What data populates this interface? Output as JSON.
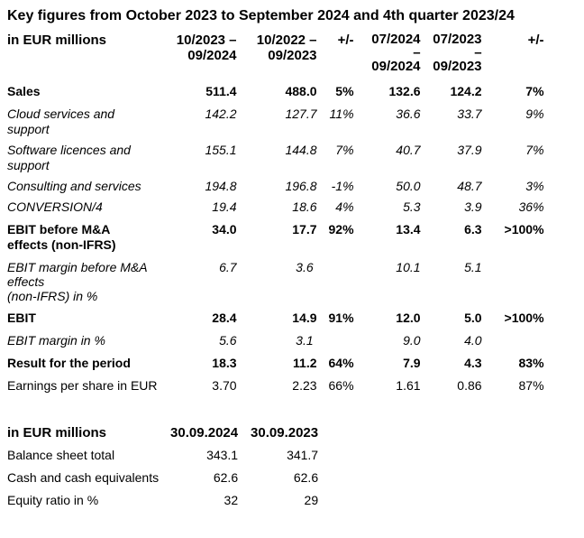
{
  "title": "Key figures from October 2023 to September 2024 and 4th quarter 2023/24",
  "main_table": {
    "label_header": "in EUR millions",
    "col_headers": [
      "10/2023 –\n09/2024",
      "10/2022 –\n09/2023",
      "+/-",
      "07/2024\n–\n09/2024",
      "07/2023\n–\n09/2023",
      "+/-"
    ],
    "rows": [
      {
        "label": "Sales",
        "style": "bold",
        "values": [
          "511.4",
          "488.0",
          "5%",
          "132.6",
          "124.2",
          "7%"
        ]
      },
      {
        "label": "Cloud services and\nsupport",
        "style": "italic",
        "values": [
          "142.2",
          "127.7",
          "11%",
          "36.6",
          "33.7",
          "9%"
        ]
      },
      {
        "label": "Software licences and\nsupport",
        "style": "italic",
        "values": [
          "155.1",
          "144.8",
          "7%",
          "40.7",
          "37.9",
          "7%"
        ]
      },
      {
        "label": "Consulting and services",
        "style": "italic",
        "values": [
          "194.8",
          "196.8",
          "-1%",
          "50.0",
          "48.7",
          "3%"
        ]
      },
      {
        "label": "CONVERSION/4",
        "style": "italic",
        "values": [
          "19.4",
          "18.6",
          "4%",
          "5.3",
          "3.9",
          "36%"
        ]
      },
      {
        "label": "EBIT before M&A\neffects (non-IFRS)",
        "style": "bold",
        "values": [
          "34.0",
          "17.7",
          "92%",
          "13.4",
          "6.3",
          ">100%"
        ]
      },
      {
        "label": "EBIT margin before M&A\neffects\n(non-IFRS) in %",
        "style": "italic",
        "values": [
          "6.7",
          "3.6 ",
          "",
          "10.1",
          "5.1",
          ""
        ]
      },
      {
        "label": "EBIT",
        "style": "bold",
        "values": [
          "28.4",
          "14.9",
          "91%",
          "12.0",
          "5.0",
          ">100%"
        ]
      },
      {
        "label": "EBIT margin in %",
        "style": "italic",
        "values": [
          "5.6",
          "3.1 ",
          "",
          "9.0",
          "4.0",
          ""
        ]
      },
      {
        "label": "Result for the period",
        "style": "bold",
        "values": [
          "18.3",
          "11.2",
          "64%",
          "7.9",
          "4.3",
          "83%"
        ]
      },
      {
        "label": "Earnings per share in EUR",
        "style": "regular",
        "values": [
          "3.70",
          "2.23",
          "66%",
          "1.61",
          "0.86",
          "87%"
        ]
      }
    ]
  },
  "balance_table": {
    "label_header": "in EUR millions",
    "col_headers": [
      "30.09.2024",
      "30.09.2023"
    ],
    "rows": [
      {
        "label": "Balance sheet total",
        "style": "regular",
        "values": [
          "343.1",
          "341.7"
        ]
      },
      {
        "label": "Cash and cash equivalents",
        "style": "regular",
        "values": [
          "62.6",
          "62.6"
        ]
      },
      {
        "label": "Equity ratio in %",
        "style": "regular",
        "values": [
          "32",
          "29"
        ]
      }
    ]
  }
}
